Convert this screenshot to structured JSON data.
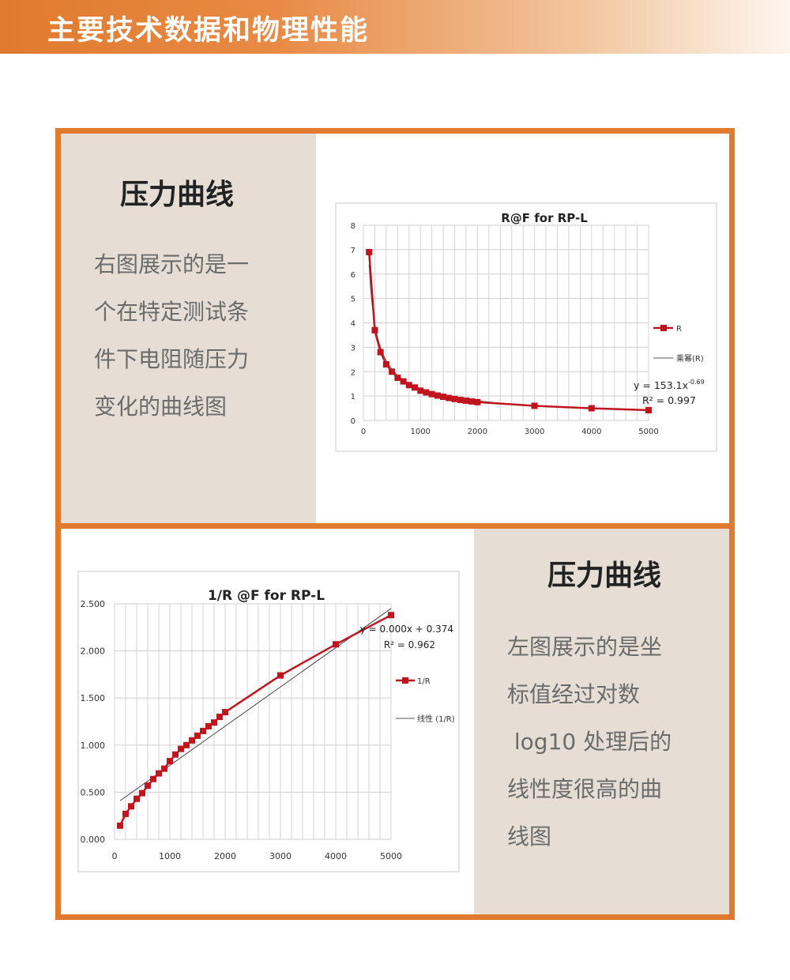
{
  "header": {
    "title": "主要技术数据和物理性能"
  },
  "section1": {
    "title": "压力曲线",
    "lines": [
      "右图展示的是一",
      "个在特定测试条",
      "件下电阻随压力",
      "变化的曲线图"
    ]
  },
  "section2": {
    "title": "压力曲线",
    "lines": [
      "左图展示的是坐",
      "标值经过对数",
      " log10 处理后的",
      "线性度很高的曲",
      "线图"
    ]
  },
  "colors": {
    "accent": "#e07a2e",
    "panel": "#e6ded5",
    "series": "#c0141e"
  },
  "chart_data": [
    {
      "type": "line",
      "title": "R@F  for RP-L",
      "xlim": [
        0,
        5000
      ],
      "ylim": [
        0,
        8
      ],
      "x_ticks": [
        "0",
        "1000",
        "2000",
        "3000",
        "4000",
        "5000"
      ],
      "y_ticks": [
        "0",
        "1",
        "2",
        "3",
        "4",
        "5",
        "6",
        "7",
        "8"
      ],
      "grid": true,
      "legend_position": "right",
      "series": [
        {
          "name": "R",
          "x": [
            100,
            200,
            300,
            400,
            500,
            600,
            700,
            800,
            900,
            1000,
            1100,
            1200,
            1300,
            1400,
            1500,
            1600,
            1700,
            1800,
            1900,
            2000,
            3000,
            4000,
            5000
          ],
          "y": [
            6.9,
            3.7,
            2.8,
            2.3,
            2.0,
            1.75,
            1.6,
            1.45,
            1.35,
            1.22,
            1.15,
            1.08,
            1.02,
            0.97,
            0.92,
            0.88,
            0.84,
            0.81,
            0.78,
            0.75,
            0.6,
            0.5,
            0.42
          ]
        }
      ],
      "trend_name": "乘幂(R)",
      "equation": {
        "prefix": "y = 153.1x",
        "exponent": "-0.69"
      },
      "r_squared": "R² = 0.997"
    },
    {
      "type": "line",
      "title": "1/R @F for RP-L",
      "xlim": [
        0,
        5000
      ],
      "ylim": [
        0,
        2.5
      ],
      "x_ticks": [
        "0",
        "1000",
        "2000",
        "3000",
        "4000",
        "5000"
      ],
      "y_ticks": [
        "0.000",
        "0.500",
        "1.000",
        "1.500",
        "2.000",
        "2.500"
      ],
      "grid": true,
      "legend_position": "right",
      "series": [
        {
          "name": "1/R",
          "x": [
            100,
            200,
            300,
            400,
            500,
            600,
            700,
            800,
            900,
            1000,
            1100,
            1200,
            1300,
            1400,
            1500,
            1600,
            1700,
            1800,
            1900,
            2000,
            3000,
            4000,
            5000
          ],
          "y": [
            0.145,
            0.27,
            0.35,
            0.43,
            0.49,
            0.57,
            0.64,
            0.7,
            0.75,
            0.83,
            0.9,
            0.96,
            1.0,
            1.05,
            1.1,
            1.15,
            1.2,
            1.24,
            1.3,
            1.35,
            1.74,
            2.07,
            2.38
          ]
        }
      ],
      "trend_name": "线性 (1/R)",
      "trend_line": [
        [
          100,
          0.41
        ],
        [
          5000,
          2.45
        ]
      ],
      "equation": {
        "prefix": "y = 0.000x + 0.374",
        "exponent": ""
      },
      "r_squared": "R² = 0.962"
    }
  ]
}
